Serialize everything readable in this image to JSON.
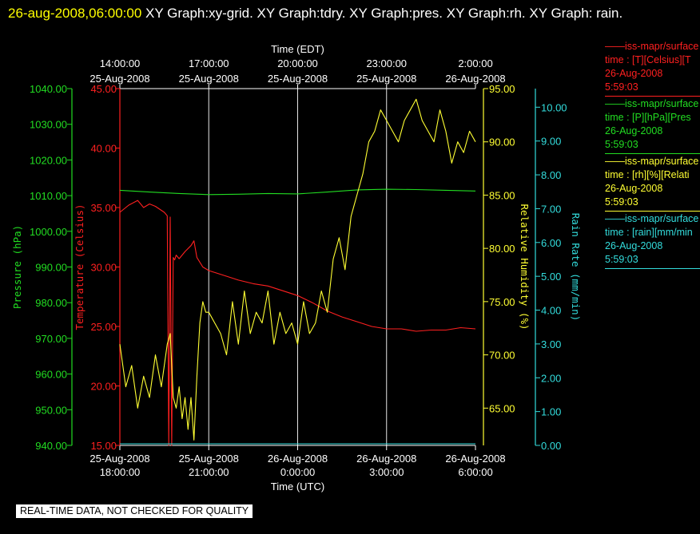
{
  "title": {
    "timestamp": "26-aug-2008,06:00:00",
    "rest": "  XY Graph:xy-grid.  XY Graph:tdry.  XY Graph:pres.  XY Graph:rh.  XY Graph: rain."
  },
  "legend": [
    {
      "line1": "——iss-mapr/surface",
      "line2": "time : [T][Celsius][T",
      "line3": "26-Aug-2008",
      "line4": "5:59:03",
      "color": "#ff2020"
    },
    {
      "line1": "——iss-mapr/surface",
      "line2": "time : [P][hPa][Pres",
      "line3": "26-Aug-2008",
      "line4": "5:59:03",
      "color": "#22dd22"
    },
    {
      "line1": "——iss-mapr/surface",
      "line2": "time : [rh][%][Relati",
      "line3": "26-Aug-2008",
      "line4": "5:59:03",
      "color": "#ffff33"
    },
    {
      "line1": "——iss-mapr/surface",
      "line2": "time : [rain][mm/min",
      "line3": "26-Aug-2008",
      "line4": "5:59:03",
      "color": "#33dddd"
    }
  ],
  "disclaimer": "REAL-TIME DATA, NOT CHECKED FOR QUALITY",
  "chart_data": {
    "type": "line",
    "top_axis": {
      "label": "Time (EDT)",
      "ticks": [
        {
          "t": 0,
          "time": "14:00:00",
          "date": "25-Aug-2008"
        },
        {
          "t": 3,
          "time": "17:00:00",
          "date": "25-Aug-2008"
        },
        {
          "t": 6,
          "time": "20:00:00",
          "date": "25-Aug-2008"
        },
        {
          "t": 9,
          "time": "23:00:00",
          "date": "25-Aug-2008"
        },
        {
          "t": 12,
          "time": "2:00:00",
          "date": "26-Aug-2008"
        }
      ]
    },
    "bottom_axis": {
      "label": "Time (UTC)",
      "range": [
        "25-Aug-2008 18:00:00",
        "26-Aug-2008 6:00:00"
      ],
      "ticks": [
        {
          "t": 0,
          "date": "25-Aug-2008",
          "time": "18:00:00"
        },
        {
          "t": 3,
          "date": "25-Aug-2008",
          "time": "21:00:00"
        },
        {
          "t": 6,
          "date": "26-Aug-2008",
          "time": "0:00:00"
        },
        {
          "t": 9,
          "date": "26-Aug-2008",
          "time": "3:00:00"
        },
        {
          "t": 12,
          "date": "26-Aug-2008",
          "time": "6:00:00"
        }
      ]
    },
    "axes": [
      {
        "id": "pres",
        "label": "Pressure (hPa)",
        "color": "#22dd22",
        "range": [
          940,
          1040
        ],
        "ticks": [
          "940.00",
          "950.00",
          "960.00",
          "970.00",
          "980.00",
          "990.00",
          "1000.00",
          "1010.00",
          "1020.00",
          "1030.00",
          "1040.00"
        ]
      },
      {
        "id": "tdry",
        "label": "Temperature (Celsius)",
        "color": "#ff2020",
        "range": [
          15,
          45
        ],
        "ticks": [
          "15.00",
          "20.00",
          "25.00",
          "30.00",
          "35.00",
          "40.00",
          "45.00"
        ]
      },
      {
        "id": "rh",
        "label": "Relative Humidity (%)",
        "color": "#ffff33",
        "range": [
          61.5,
          95
        ],
        "ticks": [
          "65.00",
          "70.00",
          "75.00",
          "80.00",
          "85.00",
          "90.00",
          "95.00"
        ]
      },
      {
        "id": "rain",
        "label": "Rain Rate (mm/min)",
        "color": "#33dddd",
        "range": [
          0,
          10.55
        ],
        "ticks": [
          "0.00",
          "1.00",
          "2.00",
          "3.00",
          "4.00",
          "5.00",
          "6.00",
          "7.00",
          "8.00",
          "9.00",
          "10.00"
        ]
      }
    ],
    "x_grid_hours_from_start": [
      3,
      6,
      9
    ],
    "series": [
      {
        "axis": "pres",
        "x_hours": [
          0,
          1,
          2,
          3,
          4,
          5,
          6,
          7,
          8,
          9,
          10,
          11,
          12
        ],
        "values": [
          1011.5,
          1011.0,
          1010.6,
          1010.3,
          1010.4,
          1010.6,
          1010.5,
          1011.0,
          1011.6,
          1011.8,
          1011.7,
          1011.5,
          1011.3
        ]
      },
      {
        "axis": "tdry",
        "x_hours": [
          0,
          0.3,
          0.6,
          0.8,
          1.0,
          1.2,
          1.5,
          1.6,
          1.65,
          1.7,
          1.75,
          1.8,
          1.85,
          1.9,
          2.0,
          2.2,
          2.4,
          2.5,
          2.6,
          2.8,
          3.0,
          3.5,
          4.0,
          4.5,
          5.0,
          5.5,
          6.0,
          6.5,
          7.0,
          7.5,
          8.0,
          8.5,
          9.0,
          9.5,
          10.0,
          10.5,
          11.0,
          11.5,
          12.0
        ],
        "values": [
          34.6,
          35.2,
          35.6,
          35.0,
          35.3,
          35.1,
          34.6,
          34.3,
          15.0,
          34.2,
          15.0,
          30.8,
          30.6,
          31.0,
          30.7,
          31.3,
          31.8,
          32.2,
          30.8,
          30.0,
          29.7,
          29.3,
          28.9,
          28.6,
          28.4,
          28.0,
          27.6,
          27.0,
          26.3,
          25.8,
          25.4,
          25.0,
          24.8,
          24.8,
          24.6,
          24.7,
          24.7,
          24.9,
          24.8
        ]
      },
      {
        "axis": "rh",
        "x_hours": [
          0,
          0.2,
          0.4,
          0.6,
          0.8,
          1.0,
          1.2,
          1.4,
          1.6,
          1.7,
          1.8,
          1.9,
          2.0,
          2.1,
          2.2,
          2.3,
          2.4,
          2.5,
          2.6,
          2.7,
          2.8,
          2.9,
          3.0,
          3.2,
          3.4,
          3.6,
          3.8,
          4.0,
          4.2,
          4.4,
          4.6,
          4.8,
          5.0,
          5.2,
          5.4,
          5.6,
          5.8,
          6.0,
          6.2,
          6.4,
          6.6,
          6.8,
          7.0,
          7.2,
          7.4,
          7.6,
          7.8,
          8.0,
          8.2,
          8.4,
          8.6,
          8.8,
          9.0,
          9.2,
          9.4,
          9.6,
          9.8,
          10.0,
          10.2,
          10.4,
          10.6,
          10.8,
          11.0,
          11.2,
          11.4,
          11.6,
          11.8,
          12.0
        ],
        "values": [
          71,
          67,
          69,
          65,
          68,
          66,
          70,
          67,
          71,
          72,
          66,
          65,
          67,
          64,
          66,
          63,
          66,
          62,
          68,
          73,
          75,
          74,
          74,
          73,
          72,
          70,
          75,
          71,
          76,
          72,
          74,
          73,
          76,
          71,
          74,
          72,
          73,
          71,
          75,
          72,
          73,
          76,
          74,
          79,
          81,
          78,
          83,
          85,
          87,
          90,
          91,
          93,
          92,
          91,
          90,
          92,
          93,
          94,
          92,
          91,
          90,
          93,
          91,
          88,
          90,
          89,
          91,
          90
        ]
      }
    ]
  }
}
